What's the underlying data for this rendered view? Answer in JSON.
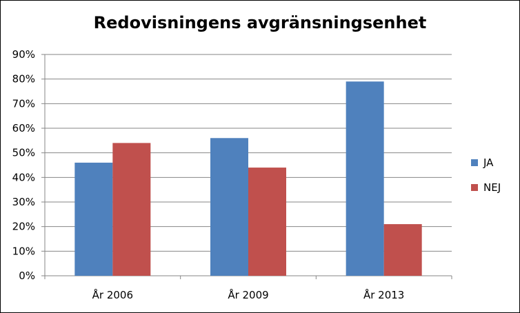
{
  "chart_data": {
    "type": "bar",
    "title": "Redovisningens avgränsningsenhet",
    "categories": [
      "År 2006",
      "År 2009",
      "År 2013"
    ],
    "series": [
      {
        "name": "JA",
        "values": [
          46,
          56,
          79
        ],
        "color": "#4F81BD"
      },
      {
        "name": "NEJ",
        "values": [
          54,
          44,
          21
        ],
        "color": "#C0504D"
      }
    ],
    "y_ticks": [
      "0%",
      "10%",
      "20%",
      "30%",
      "40%",
      "50%",
      "60%",
      "70%",
      "80%",
      "90%"
    ],
    "ylim": [
      0,
      90
    ],
    "y_unit": "%",
    "grid": true,
    "legend_position": "right"
  }
}
